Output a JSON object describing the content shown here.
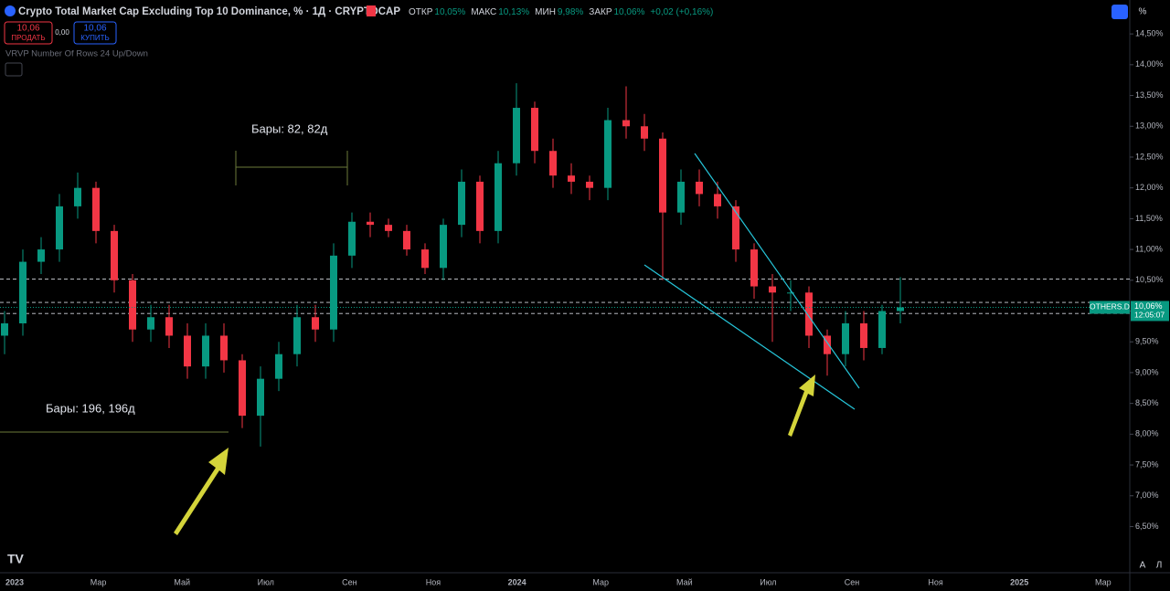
{
  "header": {
    "title": "Crypto Total Market Cap Excluding Top 10 Dominance, % · 1Д · CRYPTOCAP",
    "ohlc": [
      [
        "ОТКР",
        "10,05%"
      ],
      [
        "МАКС",
        "10,13%"
      ],
      [
        "МИН",
        "9,98%"
      ],
      [
        "ЗАКР",
        "10,06%"
      ]
    ],
    "change": "+0,02 (+0,16%)",
    "sell_price": "10,06",
    "sell_label": "ПРОДАТЬ",
    "spread": "0,00",
    "buy_price": "10,06",
    "buy_label": "КУПИТЬ",
    "indicator": "VRVP Number Of Rows 24 Up/Down",
    "scale_unit": "%",
    "scale_buttons": [
      "A",
      "Л"
    ]
  },
  "chart_data": {
    "type": "candlestick",
    "up_color": "#089981",
    "down_color": "#f23645",
    "open": [
      9.6,
      9.8,
      10.8,
      11.0,
      11.7,
      12.0,
      11.3,
      10.5,
      9.7,
      9.9,
      9.6,
      9.1,
      9.6,
      9.2,
      8.3,
      8.9,
      9.3,
      9.9,
      9.7,
      10.9,
      11.45,
      11.4,
      11.3,
      11.0,
      10.7,
      11.4,
      12.1,
      11.3,
      12.4,
      13.3,
      12.6,
      12.2,
      12.1,
      12.0,
      13.1,
      13.0,
      12.8,
      11.6,
      12.1,
      11.9,
      11.7,
      11.0,
      10.4,
      10.3,
      10.3,
      9.6,
      9.3,
      9.8,
      9.4,
      10.0
    ],
    "high": [
      10.0,
      11.0,
      11.2,
      11.9,
      12.25,
      12.1,
      11.4,
      10.6,
      10.1,
      10.1,
      9.8,
      9.8,
      9.8,
      9.3,
      9.1,
      9.5,
      10.1,
      10.1,
      11.1,
      11.6,
      11.6,
      11.5,
      11.4,
      11.1,
      11.5,
      12.3,
      12.2,
      12.6,
      13.7,
      13.4,
      12.8,
      12.4,
      12.2,
      13.3,
      13.65,
      13.2,
      12.9,
      12.3,
      12.3,
      12.1,
      11.8,
      11.1,
      10.6,
      10.5,
      10.4,
      9.7,
      10.0,
      10.0,
      10.1,
      10.55
    ],
    "low": [
      9.3,
      9.6,
      10.6,
      10.8,
      11.5,
      11.1,
      10.3,
      9.5,
      9.5,
      9.4,
      8.9,
      8.9,
      9.0,
      8.1,
      7.8,
      8.7,
      9.1,
      9.5,
      9.5,
      10.7,
      11.2,
      11.2,
      10.9,
      10.6,
      10.5,
      11.2,
      11.1,
      11.1,
      12.2,
      12.4,
      12.0,
      11.9,
      11.8,
      11.8,
      12.8,
      12.6,
      10.5,
      11.4,
      11.7,
      11.5,
      10.8,
      10.2,
      9.5,
      10.0,
      9.4,
      8.95,
      9.1,
      9.2,
      9.3,
      9.8
    ],
    "close": [
      9.8,
      10.8,
      11.0,
      11.7,
      12.0,
      11.3,
      10.5,
      9.7,
      9.9,
      9.6,
      9.1,
      9.6,
      9.2,
      8.3,
      8.9,
      9.3,
      9.9,
      9.7,
      10.9,
      11.45,
      11.4,
      11.3,
      11.0,
      10.7,
      11.4,
      12.1,
      11.3,
      12.4,
      13.3,
      12.6,
      12.2,
      12.1,
      12.0,
      13.1,
      13.0,
      12.8,
      11.6,
      12.1,
      11.9,
      11.7,
      11.0,
      10.4,
      10.3,
      10.3,
      9.6,
      9.3,
      9.8,
      9.4,
      10.0,
      10.06
    ],
    "x_labels": [
      "2023",
      "Мар",
      "Май",
      "Июл",
      "Сен",
      "Ноя",
      "2024",
      "Мар",
      "Май",
      "Июл",
      "Сен",
      "Ноя",
      "2025",
      "Мар"
    ],
    "ylim": [
      5.78,
      14.68
    ],
    "yticks": [
      {
        "value": 6.5,
        "label": "6,50%"
      },
      {
        "value": 7,
        "label": "7,00%"
      },
      {
        "value": 7.5,
        "label": "7,50%"
      },
      {
        "value": 8,
        "label": "8,00%"
      },
      {
        "value": 8.5,
        "label": "8,50%"
      },
      {
        "value": 9,
        "label": "9,00%"
      },
      {
        "value": 9.5,
        "label": "9,50%"
      },
      {
        "value": 10,
        "label": "10,00%"
      },
      {
        "value": 10.5,
        "label": "10,50%"
      },
      {
        "value": 11,
        "label": "11,00%"
      },
      {
        "value": 11.5,
        "label": "11,50%"
      },
      {
        "value": 12,
        "label": "12,00%"
      },
      {
        "value": 12.5,
        "label": "12,50%"
      },
      {
        "value": 13,
        "label": "13,00%"
      },
      {
        "value": 13.5,
        "label": "13,50%"
      },
      {
        "value": 14,
        "label": "14,00%"
      },
      {
        "value": 14.5,
        "label": "14,50%"
      }
    ],
    "levels": [
      10.52,
      10.14,
      9.96
    ],
    "price_line": {
      "value": 10.06,
      "label": "10,06%",
      "symbol": "OTHERS.D",
      "countdown": "12:05:07"
    },
    "annotations": [
      "Бары: 82, 82д",
      "Бары: 196, 196д"
    ]
  }
}
